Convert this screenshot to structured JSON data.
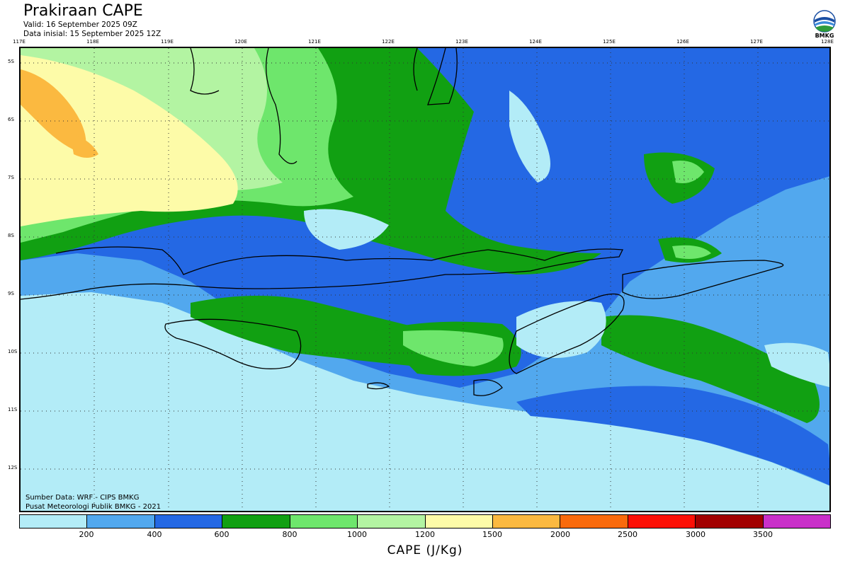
{
  "header": {
    "title": "Prakiraan CAPE",
    "valid": "Valid: 16 September 2025 09Z",
    "init": "Data inisial: 15 September 2025 12Z"
  },
  "logo": {
    "text": "BMKG",
    "icon": "bmkg-logo-icon"
  },
  "map": {
    "lon_labels": [
      "117E",
      "118E",
      "119E",
      "120E",
      "121E",
      "122E",
      "123E",
      "124E",
      "125E",
      "126E",
      "127E",
      "128E"
    ],
    "lat_labels": [
      "5S",
      "6S",
      "7S",
      "8S",
      "9S",
      "10S",
      "11S",
      "12S"
    ],
    "credit_source": "Sumber Data: WRF - CIPS BMKG",
    "credit_org": "Pusat Meteorologi Publik BMKG - 2021"
  },
  "legend": {
    "colors": [
      "#b3ecf7",
      "#52a8ee",
      "#2468e4",
      "#11a012",
      "#6ee66c",
      "#b3f4a2",
      "#fdfba8",
      "#fbb940",
      "#f96a0c",
      "#fc1006",
      "#a20000",
      "#c930c9"
    ],
    "ticks": [
      "200",
      "400",
      "600",
      "800",
      "1000",
      "1200",
      "1500",
      "2000",
      "2500",
      "3000",
      "3500"
    ],
    "axis_title": "CAPE (J/Kg)"
  }
}
